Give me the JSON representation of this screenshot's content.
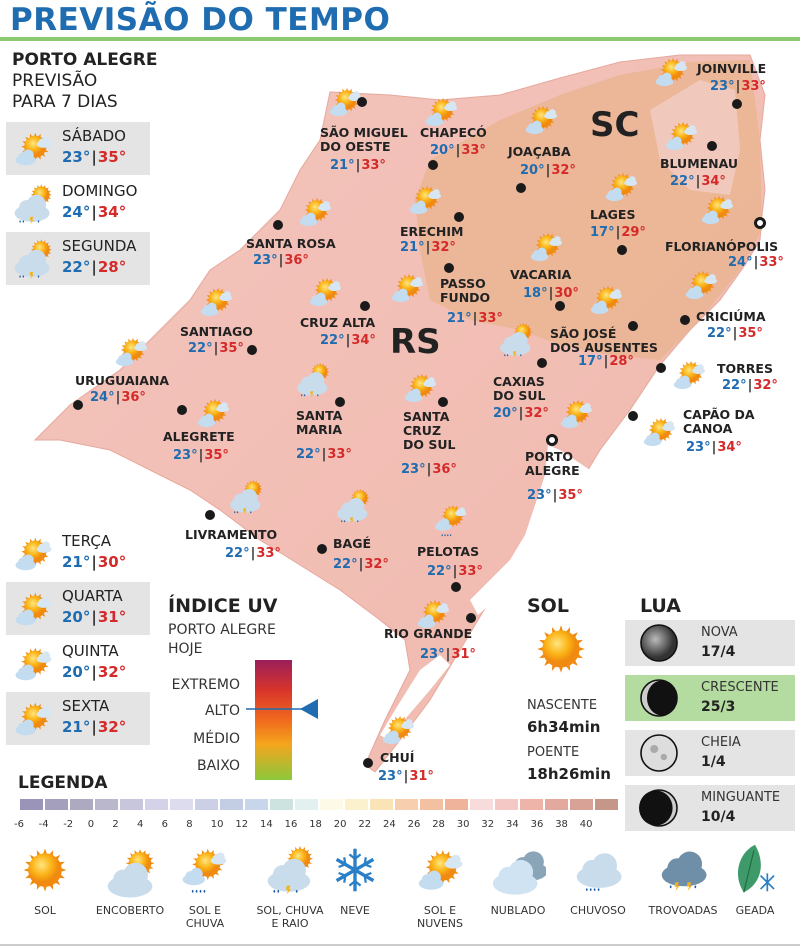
{
  "header": {
    "title": "PREVISÃO DO TEMPO"
  },
  "forecast": {
    "city": "PORTO ALEGRE",
    "subtitle_1": "PREVISÃO",
    "subtitle_2": "PARA 7 DIAS",
    "days": [
      {
        "name": "SÁBADO",
        "lo": "23°",
        "hi": "35°",
        "icon": "sun-clouds"
      },
      {
        "name": "DOMINGO",
        "lo": "24°",
        "hi": "34°",
        "icon": "storm"
      },
      {
        "name": "SEGUNDA",
        "lo": "22°",
        "hi": "28°",
        "icon": "storm"
      },
      {
        "name": "TERÇA",
        "lo": "21°",
        "hi": "30°",
        "icon": "sun-clouds"
      },
      {
        "name": "QUARTA",
        "lo": "20°",
        "hi": "31°",
        "icon": "sun-clouds"
      },
      {
        "name": "QUINTA",
        "lo": "20°",
        "hi": "32°",
        "icon": "sun-clouds"
      },
      {
        "name": "SEXTA",
        "lo": "21°",
        "hi": "32°",
        "icon": "sun-clouds"
      }
    ]
  },
  "map": {
    "states": [
      "SC",
      "RS"
    ],
    "cities": [
      {
        "name": "SÃO MIGUEL\nDO OESTE",
        "lo": "21°",
        "hi": "33°",
        "icon": "sun-clouds"
      },
      {
        "name": "CHAPECÓ",
        "lo": "20°",
        "hi": "33°",
        "icon": "sun-clouds"
      },
      {
        "name": "JOAÇABA",
        "lo": "20°",
        "hi": "32°",
        "icon": "sun-clouds"
      },
      {
        "name": "JOINVILLE",
        "lo": "23°",
        "hi": "33°",
        "icon": "sun-clouds"
      },
      {
        "name": "BLUMENAU",
        "lo": "22°",
        "hi": "34°",
        "icon": "sun-clouds"
      },
      {
        "name": "LAGES",
        "lo": "17°",
        "hi": "29°",
        "icon": "sun-clouds"
      },
      {
        "name": "FLORIANÓPOLIS",
        "lo": "24°",
        "hi": "33°",
        "icon": "sun-clouds"
      },
      {
        "name": "ERECHIM",
        "lo": "21°",
        "hi": "32°",
        "icon": "sun-clouds"
      },
      {
        "name": "SANTA ROSA",
        "lo": "23°",
        "hi": "36°",
        "icon": "sun-clouds"
      },
      {
        "name": "VACARIA",
        "lo": "18°",
        "hi": "30°",
        "icon": "sun-clouds"
      },
      {
        "name": "PASSO\nFUNDO",
        "lo": "21°",
        "hi": "33°",
        "icon": "sun-clouds"
      },
      {
        "name": "SANTIAGO",
        "lo": "22°",
        "hi": "35°",
        "icon": "sun-clouds"
      },
      {
        "name": "CRUZ ALTA",
        "lo": "22°",
        "hi": "34°",
        "icon": "sun-clouds"
      },
      {
        "name": "CRICIÚMA",
        "lo": "22°",
        "hi": "35°",
        "icon": "sun-clouds"
      },
      {
        "name": "SÃO JOSÉ\nDOS AUSENTES",
        "lo": "17°",
        "hi": "28°",
        "icon": "sun-clouds"
      },
      {
        "name": "CAXIAS\nDO SUL",
        "lo": "20°",
        "hi": "32°",
        "icon": "storm"
      },
      {
        "name": "TORRES",
        "lo": "22°",
        "hi": "32°",
        "icon": "sun-clouds"
      },
      {
        "name": "URUGUAIANA",
        "lo": "24°",
        "hi": "36°",
        "icon": "sun-clouds"
      },
      {
        "name": "SANTA\nMARIA",
        "lo": "22°",
        "hi": "33°",
        "icon": "storm"
      },
      {
        "name": "SANTA\nCRUZ\nDO SUL",
        "lo": "23°",
        "hi": "36°",
        "icon": "sun-clouds"
      },
      {
        "name": "ALEGRETE",
        "lo": "23°",
        "hi": "35°",
        "icon": "sun-clouds"
      },
      {
        "name": "CAPÃO DA\nCANOA",
        "lo": "23°",
        "hi": "34°",
        "icon": "sun-clouds"
      },
      {
        "name": "PORTO\nALEGRE",
        "lo": "23°",
        "hi": "35°",
        "icon": "sun-clouds"
      },
      {
        "name": "LIVRAMENTO",
        "lo": "22°",
        "hi": "33°",
        "icon": "storm"
      },
      {
        "name": "BAGÉ",
        "lo": "22°",
        "hi": "32°",
        "icon": "storm"
      },
      {
        "name": "PELOTAS",
        "lo": "22°",
        "hi": "33°",
        "icon": "sun-rain"
      },
      {
        "name": "RIO GRANDE",
        "lo": "23°",
        "hi": "31°",
        "icon": "sun-clouds"
      },
      {
        "name": "CHUÍ",
        "lo": "23°",
        "hi": "31°",
        "icon": "sun-clouds"
      }
    ]
  },
  "uv": {
    "title": "ÍNDICE UV",
    "subtitle_1": "PORTO ALEGRE",
    "subtitle_2": "HOJE",
    "levels": [
      "EXTREMO",
      "ALTO",
      "MÉDIO",
      "BAIXO"
    ],
    "current": "ALTO"
  },
  "sun": {
    "title": "SOL",
    "sunrise_label": "NASCENTE",
    "sunrise": "6h34min",
    "sunset_label": "POENTE",
    "sunset": "18h26min"
  },
  "moon": {
    "title": "LUA",
    "phases": [
      {
        "name": "NOVA",
        "date": "17/4",
        "icon": "moon-new"
      },
      {
        "name": "CRESCENTE",
        "date": "25/3",
        "icon": "moon-crescent",
        "active": true
      },
      {
        "name": "CHEIA",
        "date": "1/4",
        "icon": "moon-full"
      },
      {
        "name": "MINGUANTE",
        "date": "10/4",
        "icon": "moon-waning"
      }
    ]
  },
  "legend": {
    "title": "LEGENDA",
    "scale_labels": [
      "-6",
      "-4",
      "-2",
      "0",
      "2",
      "4",
      "6",
      "8",
      "10",
      "12",
      "14",
      "16",
      "18",
      "20",
      "22",
      "24",
      "26",
      "28",
      "30",
      "32",
      "34",
      "36",
      "38",
      "40"
    ],
    "scale_colors": [
      "#9a94b8",
      "#a39fbd",
      "#ada9c0",
      "#bab7cc",
      "#c8c6dd",
      "#d3d2e8",
      "#dcdcee",
      "#cbd0e6",
      "#c3cde3",
      "#c7d6ea",
      "#cde3e0",
      "#e3f0f0",
      "#fdfbe8",
      "#fbf1cc",
      "#fbe3b8",
      "#f7cfae",
      "#f3c0a2",
      "#eeb39a",
      "#f8dcdc",
      "#f4c8c4",
      "#eeb4aa",
      "#e3a89e",
      "#d8a296",
      "#c59788"
    ],
    "items": [
      {
        "label": "SOL",
        "icon": "sun"
      },
      {
        "label": "ENCOBERTO",
        "icon": "overcast"
      },
      {
        "label": "SOL E\nCHUVA",
        "icon": "sun-rain"
      },
      {
        "label": "SOL, CHUVA\nE RAIO",
        "icon": "storm"
      },
      {
        "label": "NEVE",
        "icon": "snow"
      },
      {
        "label": "SOL E\nNUVENS",
        "icon": "sun-clouds"
      },
      {
        "label": "NUBLADO",
        "icon": "cloudy"
      },
      {
        "label": "CHUVOSO",
        "icon": "rain"
      },
      {
        "label": "TROVOADAS",
        "icon": "thunder"
      },
      {
        "label": "GEADA",
        "icon": "frost"
      }
    ]
  },
  "colors": {
    "title": "#1f6cb0",
    "low": "#1f6cb0",
    "high": "#d42a2a",
    "rule": "#8cc870",
    "moon_active": "#b5dca0"
  }
}
